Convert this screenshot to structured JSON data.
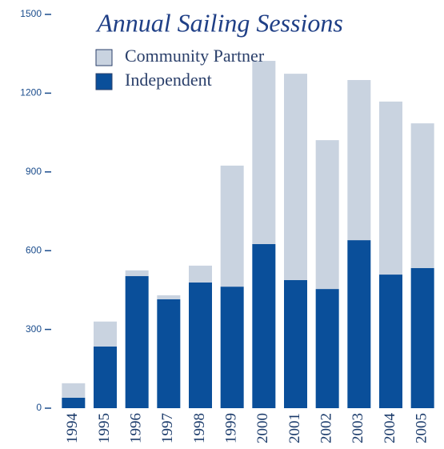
{
  "chart_data": {
    "type": "stacked_bar",
    "title": "Annual Sailing Sessions",
    "categories": [
      "1994",
      "1995",
      "1996",
      "1997",
      "1998",
      "1999",
      "2000",
      "2001",
      "2002",
      "2003",
      "2004",
      "2005"
    ],
    "series": [
      {
        "name": "Community Partner",
        "color": "#c9d3e0",
        "values": [
          55,
          95,
          22,
          15,
          64,
          461,
          698,
          786,
          567,
          610,
          659,
          551
        ]
      },
      {
        "name": "Independent",
        "color": "#0a4f9a",
        "values": [
          40,
          235,
          503,
          415,
          479,
          463,
          625,
          488,
          454,
          640,
          509,
          534
        ]
      }
    ],
    "ylim": [
      0,
      1500
    ],
    "yticks": [
      0,
      300,
      600,
      900,
      1200,
      1500
    ]
  }
}
